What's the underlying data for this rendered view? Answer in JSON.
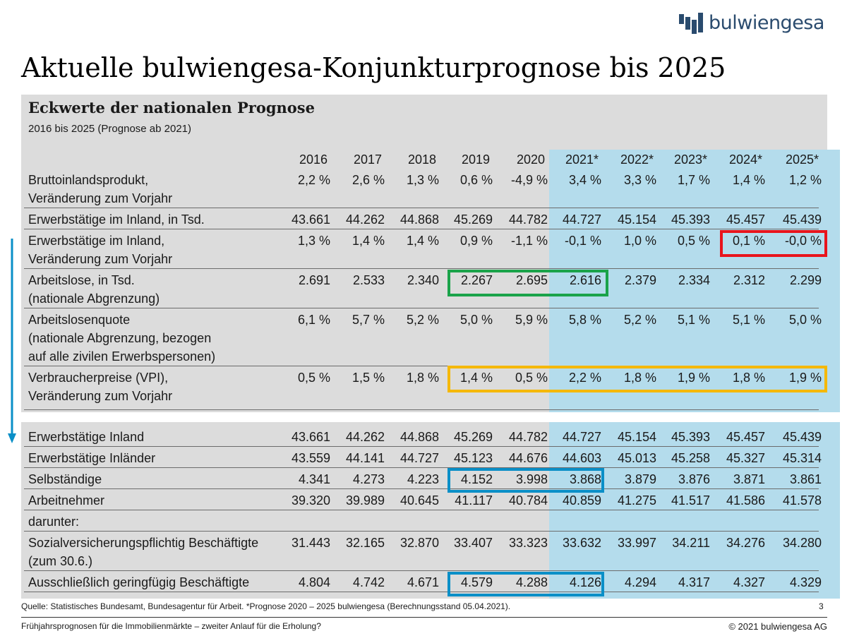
{
  "logo": {
    "text": "bulwiengesa"
  },
  "title": "Aktuelle bulwiengesa-Konjunkturprognose bis 2025",
  "table": {
    "title": "Eckwerte  der nationalen Prognose",
    "subtitle": "2016 bis 2025 (Prognose ab 2021)",
    "years": [
      "2016",
      "2017",
      "2018",
      "2019",
      "2020",
      "2021*",
      "2022*",
      "2023*",
      "2024*",
      "2025*"
    ]
  },
  "rows_top": [
    {
      "label": [
        "Bruttoinlandsprodukt,",
        "Veränderung zum Vorjahr"
      ],
      "values": [
        "2,2 %",
        "2,6 %",
        "1,3 %",
        "0,6 %",
        "-4,9 %",
        "3,4 %",
        "3,3 %",
        "1,7 %",
        "1,4 %",
        "1,2 %"
      ]
    },
    {
      "label": [
        "Erwerbstätige im Inland, in Tsd."
      ],
      "values": [
        "43.661",
        "44.262",
        "44.868",
        "45.269",
        "44.782",
        "44.727",
        "45.154",
        "45.393",
        "45.457",
        "45.439"
      ]
    },
    {
      "label": [
        "Erwerbstätige im Inland,",
        "Veränderung zum Vorjahr"
      ],
      "values": [
        "1,3 %",
        "1,4 %",
        "1,4 %",
        "0,9 %",
        "-1,1 %",
        "-0,1 %",
        "1,0 %",
        "0,5 %",
        "0,1 %",
        "-0,0 %"
      ]
    },
    {
      "label": [
        "Arbeitslose, in Tsd.",
        "(nationale Abgrenzung)"
      ],
      "values": [
        "2.691",
        "2.533",
        "2.340",
        "2.267",
        "2.695",
        "2.616",
        "2.379",
        "2.334",
        "2.312",
        "2.299"
      ]
    },
    {
      "label": [
        "Arbeitslosenquote",
        "(nationale Abgrenzung, bezogen",
        "auf alle zivilen Erwerbspersonen)"
      ],
      "values": [
        "6,1 %",
        "5,7 %",
        "5,2 %",
        "5,0 %",
        "5,9 %",
        "5,8 %",
        "5,2 %",
        "5,1 %",
        "5,1 %",
        "5,0 %"
      ]
    },
    {
      "label": [
        "Verbraucherpreise (VPI),",
        "Veränderung zum Vorjahr"
      ],
      "values": [
        "0,5 %",
        "1,5 %",
        "1,8 %",
        "1,4 %",
        "0,5 %",
        "2,2 %",
        "1,8 %",
        "1,9 %",
        "1,8 %",
        "1,9 %"
      ]
    }
  ],
  "rows_bottom": [
    {
      "label": [
        "Erwerbstätige Inland"
      ],
      "values": [
        "43.661",
        "44.262",
        "44.868",
        "45.269",
        "44.782",
        "44.727",
        "45.154",
        "45.393",
        "45.457",
        "45.439"
      ]
    },
    {
      "label": [
        "Erwerbstätige Inländer"
      ],
      "values": [
        "43.559",
        "44.141",
        "44.727",
        "45.123",
        "44.676",
        "44.603",
        "45.013",
        "45.258",
        "45.327",
        "45.314"
      ]
    },
    {
      "label": [
        "Selbständige"
      ],
      "values": [
        "4.341",
        "4.273",
        "4.223",
        "4.152",
        "3.998",
        "3.868",
        "3.879",
        "3.876",
        "3.871",
        "3.861"
      ]
    },
    {
      "label": [
        "Arbeitnehmer"
      ],
      "values": [
        "39.320",
        "39.989",
        "40.645",
        "41.117",
        "40.784",
        "40.859",
        "41.275",
        "41.517",
        "41.586",
        "41.578"
      ]
    },
    {
      "label": [
        "darunter:"
      ],
      "values": [
        "",
        "",
        "",
        "",
        "",
        "",
        "",
        "",
        "",
        ""
      ]
    },
    {
      "label": [
        "Sozialversicherungspflichtig Beschäftigte",
        "(zum 30.6.)"
      ],
      "values": [
        "31.443",
        "32.165",
        "32.870",
        "33.407",
        "33.323",
        "33.632",
        "33.997",
        "34.211",
        "34.276",
        "34.280"
      ]
    },
    {
      "label": [
        "Ausschließlich geringfügig Beschäftigte"
      ],
      "values": [
        "4.804",
        "4.742",
        "4.671",
        "4.579",
        "4.288",
        "4.126",
        "4.294",
        "4.317",
        "4.327",
        "4.329"
      ]
    }
  ],
  "colors": {
    "highlight_red": "#e8141c",
    "highlight_green": "#1aa34a",
    "highlight_yellow": "#f5b800",
    "highlight_blue": "#0a8fc7",
    "forecast_band": "#b4dcec",
    "panel_bg": "#dcdcdc"
  },
  "footer": {
    "source": "Quelle: Statistisches Bundesamt, Bundesagentur für Arbeit. *Prognose 2020 – 2025 bulwiengesa (Berechnungsstand 05.04.2021).",
    "page": "3",
    "left": "Frühjahrsprognosen für die Immobilienmärkte – zweiter Anlauf für die Erholung?",
    "right": "© 2021 bulwiengesa AG"
  }
}
